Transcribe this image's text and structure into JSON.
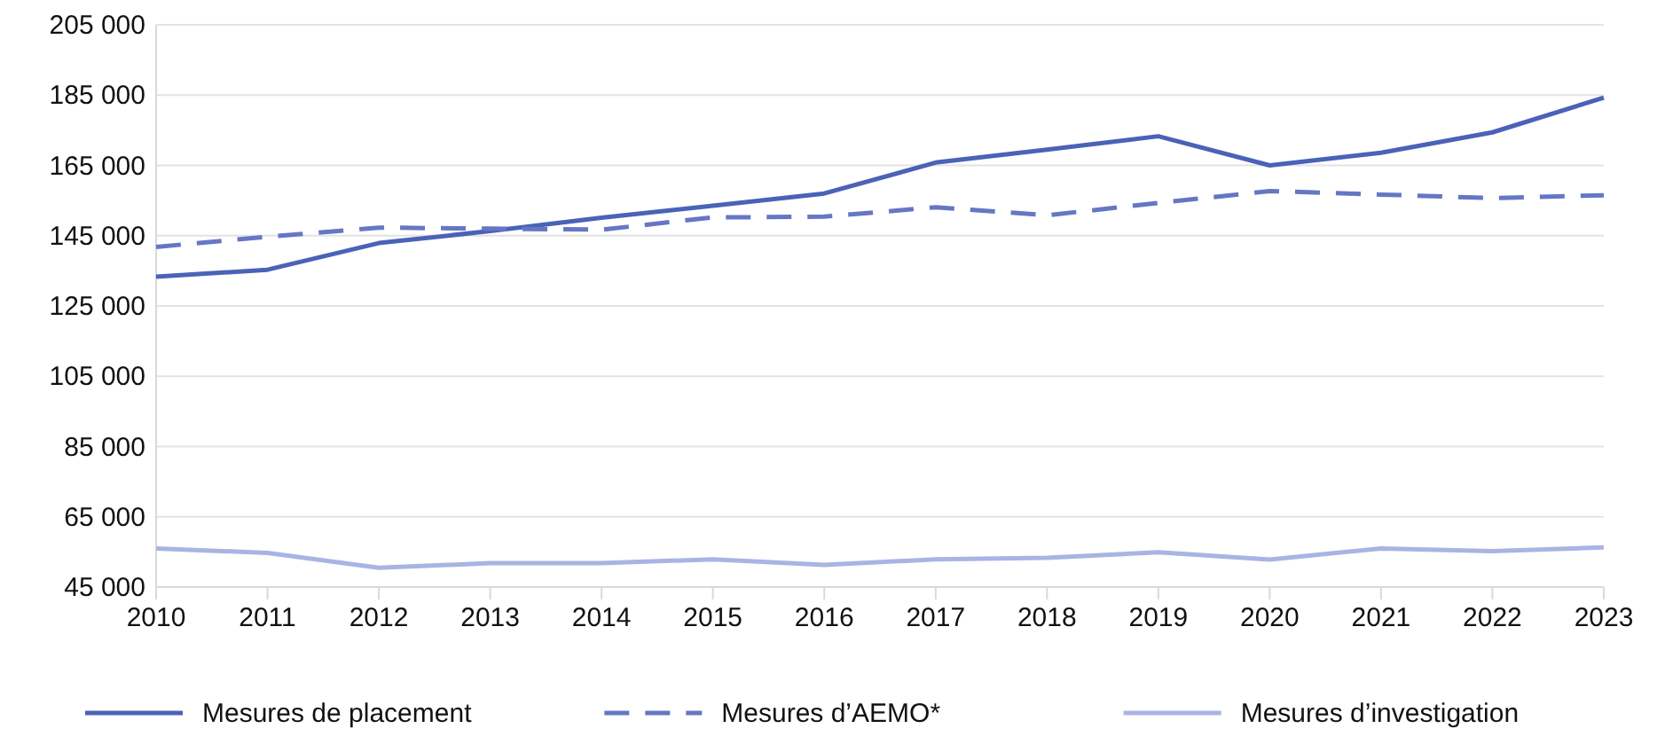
{
  "chart_data": {
    "type": "line",
    "x": [
      2010,
      2011,
      2012,
      2013,
      2014,
      2015,
      2016,
      2017,
      2018,
      2019,
      2020,
      2021,
      2022,
      2023
    ],
    "xlim": [
      2010,
      2023
    ],
    "xticks": [
      2010,
      2011,
      2012,
      2013,
      2014,
      2015,
      2016,
      2017,
      2018,
      2019,
      2020,
      2021,
      2022,
      2023
    ],
    "ylim": [
      45000,
      205000
    ],
    "yticks": [
      {
        "value": 45000,
        "label": "45 000"
      },
      {
        "value": 65000,
        "label": "65 000"
      },
      {
        "value": 85000,
        "label": "85 000"
      },
      {
        "value": 105000,
        "label": "105 000"
      },
      {
        "value": 125000,
        "label": "125 000"
      },
      {
        "value": 145000,
        "label": "145 000"
      },
      {
        "value": 165000,
        "label": "165 000"
      },
      {
        "value": 185000,
        "label": "185 000"
      },
      {
        "value": 205000,
        "label": "205 000"
      }
    ],
    "grid": "y",
    "legend": "bottom",
    "series": [
      {
        "name": "Mesures de placement",
        "color": "#4a62b8",
        "line_style": "solid",
        "values": [
          133300,
          135300,
          142900,
          146300,
          150100,
          153500,
          157000,
          165800,
          169500,
          173300,
          165000,
          168600,
          174400,
          184300
        ]
      },
      {
        "name": "Mesures d’AEMO*",
        "color": "#6577c4",
        "line_style": "dashed",
        "values": [
          141800,
          144700,
          147300,
          147000,
          146700,
          150200,
          150400,
          153100,
          150800,
          154300,
          157700,
          156700,
          155700,
          156500
        ]
      },
      {
        "name": "Mesures d’investigation",
        "color": "#a9b4e4",
        "line_style": "solid",
        "values": [
          56000,
          54700,
          50500,
          51800,
          51800,
          52900,
          51300,
          52900,
          53300,
          54900,
          52800,
          56000,
          55200,
          56300
        ]
      }
    ]
  }
}
